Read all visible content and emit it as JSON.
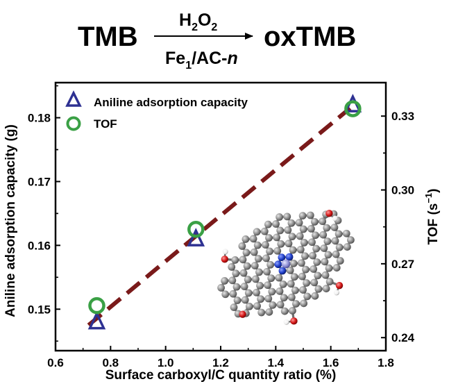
{
  "scheme": {
    "reactant": "TMB",
    "oxidant": "H",
    "oxidant_sub": "2",
    "oxidant_mid": "O",
    "oxidant_sub2": "2",
    "catalyst_main": "Fe",
    "catalyst_sub": "1",
    "catalyst_rest": "/AC-",
    "catalyst_italic": "n",
    "product": "oxTMB"
  },
  "chart_data": {
    "type": "scatter",
    "xlabel": "Surface carboxyl/C quantity ratio (%)",
    "ylabel": "Aniline adsorption capacity (g)",
    "y2label": "TOF (s",
    "y2label_sup": "−1",
    "y2label_end": ")",
    "xlim": [
      0.6,
      1.8
    ],
    "ylim": [
      0.1435,
      0.1855
    ],
    "y2lim": [
      0.2347,
      0.3436
    ],
    "xticks": [
      "0.6",
      "0.8",
      "1.0",
      "1.2",
      "1.4",
      "1.6",
      "1.8"
    ],
    "yticks": [
      "0.15",
      "0.16",
      "0.17",
      "0.18"
    ],
    "y2ticks": [
      "0.24",
      "0.27",
      "0.30",
      "0.33"
    ],
    "legend_position": "top-left",
    "series": [
      {
        "name": "Aniline adsorption capacity",
        "axis": "left",
        "marker": "triangle",
        "color": "#2e3192",
        "x": [
          0.75,
          1.11,
          1.68
        ],
        "y": [
          0.148,
          0.161,
          0.182
        ]
      },
      {
        "name": "TOF",
        "axis": "right",
        "marker": "circle",
        "color": "#3aa045",
        "x": [
          0.75,
          1.11,
          1.68
        ],
        "y": [
          0.253,
          0.284,
          0.333
        ]
      }
    ],
    "trendline": {
      "style": "dashed",
      "color": "#7a1a1a",
      "axis": "left",
      "x": [
        0.72,
        1.67
      ],
      "y": [
        0.1475,
        0.1815
      ]
    }
  },
  "inset": {
    "description_icon": "graphene-molecule-icon",
    "colors": {
      "carbon": "#8c8c8c",
      "nitrogen": "#1f3ec9",
      "iron": "#8f8fd6",
      "oxygen": "#d11414",
      "hydrogen": "#f2f2f2"
    }
  }
}
